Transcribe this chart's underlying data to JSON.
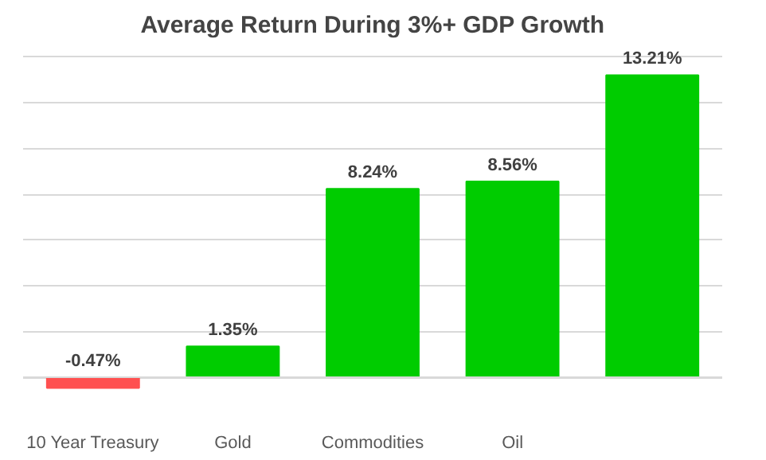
{
  "chart_data": {
    "type": "bar",
    "title": "Average Return During 3%+ GDP Growth",
    "categories": [
      "10 Year Treasury",
      "Gold",
      "Commodities",
      "Oil",
      null
    ],
    "values": [
      -0.47,
      1.35,
      8.24,
      8.56,
      13.21
    ],
    "value_labels": [
      "-0.47%",
      "1.35%",
      "8.24%",
      "8.56%",
      "13.21%"
    ],
    "colors": [
      "#ff5050",
      "#00cc00",
      "#00cc00",
      "#00cc00",
      "#00cc00"
    ],
    "ref_lines": [
      {
        "axis": "y",
        "value": 0,
        "color": "#d9d9d9"
      }
    ],
    "grid": "y",
    "tick_labels": "x"
  }
}
